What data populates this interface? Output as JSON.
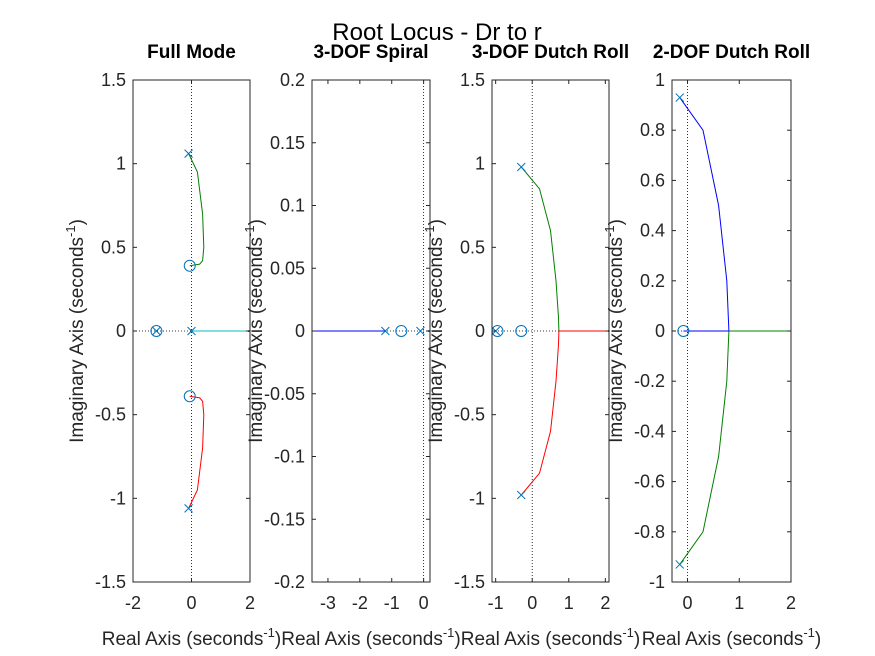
{
  "figure": {
    "suptitle": "Root Locus - Dr to r"
  },
  "chart_data": [
    {
      "type": "root-locus",
      "title": "Full Mode",
      "xlabel": "Real Axis (seconds",
      "xlabel_sup": "-1",
      "xlabel_close": ")",
      "ylabel": "Imaginary Axis (seconds",
      "ylabel_sup": "-1",
      "ylabel_close": ")",
      "xlim": [
        -2,
        2
      ],
      "ylim": [
        -1.5,
        1.5
      ],
      "xticks": [
        {
          "v": -2,
          "label": "-2"
        },
        {
          "v": 0,
          "label": "0"
        },
        {
          "v": 2,
          "label": "2"
        }
      ],
      "yticks": [
        {
          "v": -1.5,
          "label": "-1.5"
        },
        {
          "v": -1,
          "label": "-1"
        },
        {
          "v": -0.5,
          "label": "-0.5"
        },
        {
          "v": 0,
          "label": "0"
        },
        {
          "v": 0.5,
          "label": "0.5"
        },
        {
          "v": 1,
          "label": "1"
        },
        {
          "v": 1.5,
          "label": "1.5"
        }
      ],
      "poles": [
        [
          -0.1,
          1.06
        ],
        [
          -0.1,
          -1.06
        ],
        [
          -1.2,
          0
        ],
        [
          0,
          0
        ]
      ],
      "zeros": [
        [
          -0.06,
          0.39
        ],
        [
          -0.06,
          -0.39
        ],
        [
          -1.2,
          0
        ]
      ],
      "branches": [
        {
          "color": "#008000",
          "points": [
            [
              -0.1,
              1.06
            ],
            [
              0.2,
              0.95
            ],
            [
              0.38,
              0.7
            ],
            [
              0.42,
              0.5
            ],
            [
              0.38,
              0.42
            ],
            [
              0.28,
              0.4
            ],
            [
              -0.06,
              0.39
            ]
          ]
        },
        {
          "color": "#ff0000",
          "points": [
            [
              -0.1,
              -1.06
            ],
            [
              0.2,
              -0.95
            ],
            [
              0.38,
              -0.7
            ],
            [
              0.42,
              -0.5
            ],
            [
              0.38,
              -0.42
            ],
            [
              0.28,
              -0.4
            ],
            [
              -0.06,
              -0.39
            ]
          ]
        },
        {
          "color": "#00bfbf",
          "points": [
            [
              0,
              0
            ],
            [
              2,
              0
            ]
          ]
        },
        {
          "color": "#0000ff",
          "points": [
            [
              -1.2,
              0
            ],
            [
              -1.15,
              0
            ]
          ]
        }
      ]
    },
    {
      "type": "root-locus",
      "title": "3-DOF Spiral",
      "xlabel": "Real Axis (seconds",
      "xlabel_sup": "-1",
      "xlabel_close": ")",
      "ylabel": "Imaginary Axis (seconds",
      "ylabel_sup": "-1",
      "ylabel_close": ")",
      "xlim": [
        -3.5,
        0.2
      ],
      "ylim": [
        -0.2,
        0.2
      ],
      "xticks": [
        {
          "v": -3,
          "label": "-3"
        },
        {
          "v": -2,
          "label": "-2"
        },
        {
          "v": -1,
          "label": "-1"
        },
        {
          "v": 0,
          "label": "0"
        }
      ],
      "yticks": [
        {
          "v": -0.2,
          "label": "-0.2"
        },
        {
          "v": -0.15,
          "label": "-0.15"
        },
        {
          "v": -0.1,
          "label": "-0.1"
        },
        {
          "v": -0.05,
          "label": "-0.05"
        },
        {
          "v": 0,
          "label": "0"
        },
        {
          "v": 0.05,
          "label": "0.05"
        },
        {
          "v": 0.1,
          "label": "0.1"
        },
        {
          "v": 0.15,
          "label": "0.15"
        },
        {
          "v": 0.2,
          "label": "0.2"
        }
      ],
      "poles": [
        [
          -1.2,
          0
        ],
        [
          -0.1,
          0
        ]
      ],
      "zeros": [
        [
          -0.7,
          0
        ]
      ],
      "branches": [
        {
          "color": "#0000ff",
          "points": [
            [
              -3.5,
              0
            ],
            [
              -1.2,
              0
            ]
          ]
        }
      ]
    },
    {
      "type": "root-locus",
      "title": "3-DOF Dutch Roll",
      "xlabel": "Real Axis (seconds",
      "xlabel_sup": "-1",
      "xlabel_close": ")",
      "ylabel": "Imaginary Axis (seconds",
      "ylabel_sup": "-1",
      "ylabel_close": ")",
      "xlim": [
        -1.1,
        2.1
      ],
      "ylim": [
        -1.5,
        1.5
      ],
      "xticks": [
        {
          "v": -1,
          "label": "-1"
        },
        {
          "v": 0,
          "label": "0"
        },
        {
          "v": 1,
          "label": "1"
        },
        {
          "v": 2,
          "label": "2"
        }
      ],
      "yticks": [
        {
          "v": -1.5,
          "label": "-1.5"
        },
        {
          "v": -1,
          "label": "-1"
        },
        {
          "v": -0.5,
          "label": "-0.5"
        },
        {
          "v": 0,
          "label": "0"
        },
        {
          "v": 0.5,
          "label": "0.5"
        },
        {
          "v": 1,
          "label": "1"
        },
        {
          "v": 1.5,
          "label": "1.5"
        }
      ],
      "poles": [
        [
          -0.3,
          0.98
        ],
        [
          -0.3,
          -0.98
        ],
        [
          -1.0,
          0
        ]
      ],
      "zeros": [
        [
          -0.95,
          0
        ],
        [
          -0.3,
          0
        ]
      ],
      "branches": [
        {
          "color": "#008000",
          "points": [
            [
              -0.3,
              0.98
            ],
            [
              0.2,
              0.85
            ],
            [
              0.5,
              0.6
            ],
            [
              0.65,
              0.3
            ],
            [
              0.72,
              0.08
            ],
            [
              0.73,
              0
            ]
          ]
        },
        {
          "color": "#ff0000",
          "points": [
            [
              -0.3,
              -0.98
            ],
            [
              0.2,
              -0.85
            ],
            [
              0.5,
              -0.6
            ],
            [
              0.65,
              -0.3
            ],
            [
              0.72,
              -0.08
            ],
            [
              0.73,
              0
            ],
            [
              2.1,
              0
            ]
          ]
        }
      ]
    },
    {
      "type": "root-locus",
      "title": "2-DOF Dutch Roll",
      "xlabel": "Real Axis (seconds",
      "xlabel_sup": "-1",
      "xlabel_close": ")",
      "ylabel": "Imaginary Axis (seconds",
      "ylabel_sup": "-1",
      "ylabel_close": ")",
      "xlim": [
        -0.3,
        2
      ],
      "ylim": [
        -1,
        1
      ],
      "xticks": [
        {
          "v": 0,
          "label": "0"
        },
        {
          "v": 1,
          "label": "1"
        },
        {
          "v": 2,
          "label": "2"
        }
      ],
      "yticks": [
        {
          "v": -1,
          "label": "-1"
        },
        {
          "v": -0.8,
          "label": "-0.8"
        },
        {
          "v": -0.6,
          "label": "-0.6"
        },
        {
          "v": -0.4,
          "label": "-0.4"
        },
        {
          "v": -0.2,
          "label": "-0.2"
        },
        {
          "v": 0,
          "label": "0"
        },
        {
          "v": 0.2,
          "label": "0.2"
        },
        {
          "v": 0.4,
          "label": "0.4"
        },
        {
          "v": 0.6,
          "label": "0.6"
        },
        {
          "v": 0.8,
          "label": "0.8"
        },
        {
          "v": 1,
          "label": "1"
        }
      ],
      "poles": [
        [
          -0.15,
          0.93
        ],
        [
          -0.15,
          -0.93
        ]
      ],
      "zeros": [
        [
          -0.08,
          0
        ]
      ],
      "branches": [
        {
          "color": "#0000ff",
          "points": [
            [
              -0.15,
              0.93
            ],
            [
              0.3,
              0.8
            ],
            [
              0.6,
              0.5
            ],
            [
              0.76,
              0.2
            ],
            [
              0.8,
              0
            ]
          ]
        },
        {
          "color": "#008000",
          "points": [
            [
              -0.15,
              -0.93
            ],
            [
              0.3,
              -0.8
            ],
            [
              0.6,
              -0.5
            ],
            [
              0.76,
              -0.2
            ],
            [
              0.8,
              0
            ],
            [
              2,
              0
            ]
          ]
        },
        {
          "color": "#0000ff",
          "points": [
            [
              -0.08,
              0
            ],
            [
              0.8,
              0
            ]
          ]
        }
      ]
    }
  ]
}
